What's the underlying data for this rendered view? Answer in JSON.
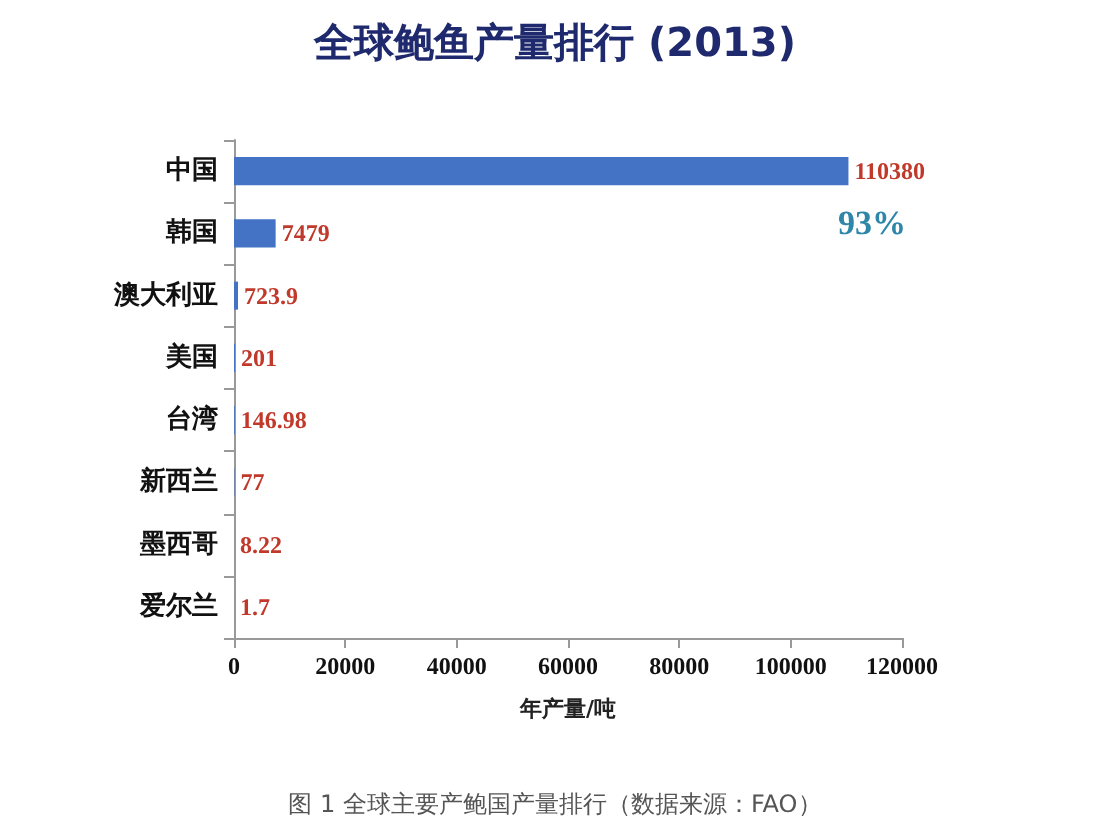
{
  "chart_data": {
    "type": "bar",
    "orientation": "horizontal",
    "title": "全球鲍鱼产量排行 (2013)",
    "xlabel": "年产量/吨",
    "categories": [
      "中国",
      "韩国",
      "澳大利亚",
      "美国",
      "台湾",
      "新西兰",
      "墨西哥",
      "爱尔兰"
    ],
    "values": [
      110380,
      7479,
      723.9,
      201,
      146.98,
      77,
      8.22,
      1.7
    ],
    "color": "#4472c4",
    "xlim": [
      0,
      120000
    ],
    "xticks": [
      0,
      20000,
      40000,
      60000,
      80000,
      100000,
      120000
    ],
    "data_labels": true,
    "annotations": [
      "93%",
      "图 1 全球主要产鲍国产量排行（数据来源：FAO）"
    ]
  }
}
